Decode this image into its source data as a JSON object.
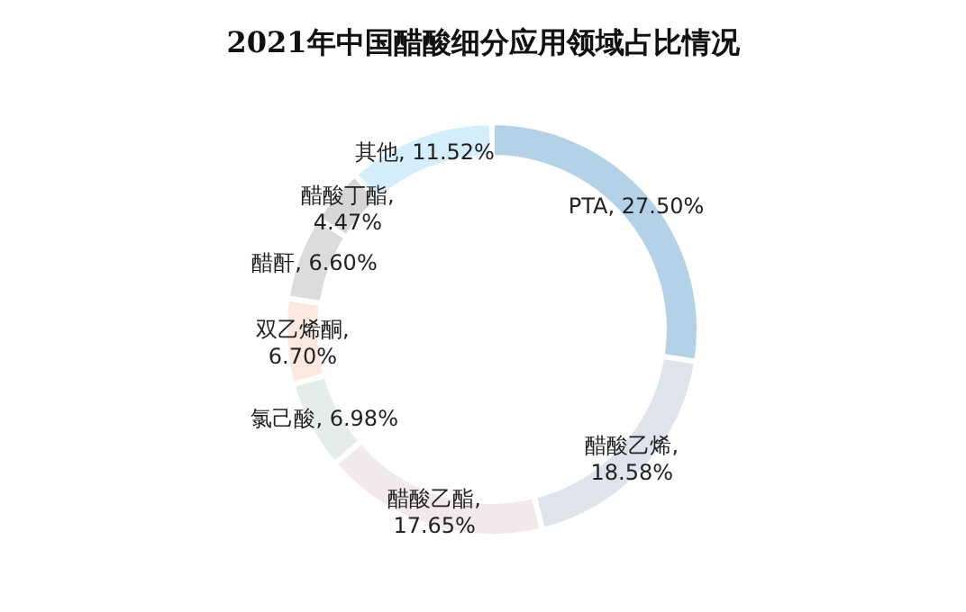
{
  "chart_data": {
    "type": "donut",
    "title": "2021年中国醋酸细分应用领域占比情况",
    "categories": [
      "PTA",
      "醋酸乙烯",
      "醋酸乙酯",
      "氯己酸",
      "双乙烯酮",
      "醋酐",
      "醋酸丁酯",
      "其他"
    ],
    "values": [
      27.5,
      18.58,
      17.65,
      6.98,
      6.7,
      6.6,
      4.47,
      11.52
    ],
    "value_labels": [
      ", 27.50%",
      ", 18.58%",
      ", 17.65%",
      ", 6.98%",
      ", 6.70%",
      ", 6.60%",
      ", 4.47%",
      ", 11.52%"
    ],
    "colors": [
      "#b4d2e7",
      "#dfe3ec",
      "#f3e9ea",
      "#e3eeec",
      "#fbe9df",
      "#dcdcdc",
      "#d6d6d6",
      "#d4effb"
    ],
    "legend": false
  }
}
